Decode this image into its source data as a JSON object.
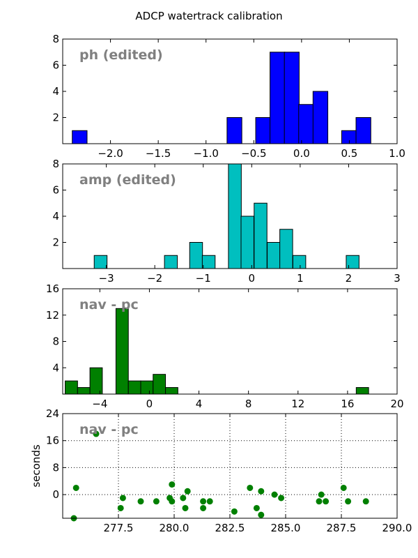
{
  "figure": {
    "title": "ADCP watertrack calibration"
  },
  "chart_data": [
    {
      "type": "bar",
      "label": "ph (edited)",
      "color": "#0000ff",
      "xlim": [
        -2.5,
        1.0
      ],
      "ylim": [
        0,
        8
      ],
      "xticks": [
        -2.0,
        -1.5,
        -1.0,
        -0.5,
        0.0,
        0.5,
        1.0
      ],
      "xtick_labels": [
        "−2.0",
        "−1.5",
        "−1.0",
        "−0.5",
        "0.0",
        "0.5",
        "1.0"
      ],
      "yticks": [
        2,
        4,
        6,
        8
      ],
      "ytick_labels": [
        "2",
        "4",
        "6",
        "8"
      ],
      "bin_width": 0.155,
      "bars": [
        {
          "x": -2.4,
          "value": 1
        },
        {
          "x": -0.78,
          "value": 2
        },
        {
          "x": -0.48,
          "value": 2
        },
        {
          "x": -0.33,
          "value": 7
        },
        {
          "x": -0.18,
          "value": 7
        },
        {
          "x": -0.03,
          "value": 3
        },
        {
          "x": 0.12,
          "value": 4
        },
        {
          "x": 0.42,
          "value": 1
        },
        {
          "x": 0.57,
          "value": 2
        }
      ]
    },
    {
      "type": "bar",
      "label": "amp (edited)",
      "color": "#00bfbf",
      "xlim": [
        -3.9,
        3.0
      ],
      "ylim": [
        0,
        8
      ],
      "xticks": [
        -3,
        -2,
        -1,
        0,
        1,
        2,
        3
      ],
      "xtick_labels": [
        "−3",
        "−2",
        "−1",
        "0",
        "1",
        "2",
        "3"
      ],
      "yticks": [
        2,
        4,
        6,
        8
      ],
      "ytick_labels": [
        "2",
        "4",
        "6",
        "8"
      ],
      "bin_width": 0.265,
      "bars": [
        {
          "x": -3.25,
          "value": 1
        },
        {
          "x": -1.8,
          "value": 1
        },
        {
          "x": -1.28,
          "value": 2
        },
        {
          "x": -1.02,
          "value": 1
        },
        {
          "x": -0.48,
          "value": 8
        },
        {
          "x": -0.22,
          "value": 4
        },
        {
          "x": 0.05,
          "value": 5
        },
        {
          "x": 0.32,
          "value": 2
        },
        {
          "x": 0.58,
          "value": 3
        },
        {
          "x": 0.85,
          "value": 1
        },
        {
          "x": 1.95,
          "value": 1
        }
      ]
    },
    {
      "type": "bar",
      "label": "nav - pc",
      "color": "#008000",
      "xlim": [
        -7.0,
        20.0
      ],
      "ylim": [
        0,
        16
      ],
      "xticks": [
        -4,
        0,
        4,
        8,
        12,
        16,
        20
      ],
      "xtick_labels": [
        "−4",
        "0",
        "4",
        "8",
        "12",
        "16",
        "20"
      ],
      "yticks": [
        4,
        8,
        12,
        16
      ],
      "ytick_labels": [
        "4",
        "8",
        "12",
        "16"
      ],
      "bin_width": 1.0,
      "bars": [
        {
          "x": -6.8,
          "value": 2
        },
        {
          "x": -5.8,
          "value": 1
        },
        {
          "x": -4.8,
          "value": 4
        },
        {
          "x": -2.7,
          "value": 13
        },
        {
          "x": -1.7,
          "value": 2
        },
        {
          "x": -0.7,
          "value": 2
        },
        {
          "x": 0.3,
          "value": 3
        },
        {
          "x": 1.3,
          "value": 1
        },
        {
          "x": 16.7,
          "value": 1
        }
      ]
    },
    {
      "type": "scatter",
      "label": "nav - pc",
      "ylabel": "seconds",
      "color": "#008000",
      "grid": true,
      "xlim": [
        275.0,
        290.0
      ],
      "ylim": [
        -7,
        24
      ],
      "xticks": [
        277.5,
        280.0,
        282.5,
        285.0,
        287.5,
        290.0
      ],
      "xtick_labels": [
        "277.5",
        "280.0",
        "282.5",
        "285.0",
        "287.5",
        "290.0"
      ],
      "yticks": [
        0,
        8,
        16,
        24
      ],
      "ytick_labels": [
        "0",
        "8",
        "16",
        "24"
      ],
      "points": [
        {
          "x": 275.6,
          "y": 2
        },
        {
          "x": 275.5,
          "y": -7
        },
        {
          "x": 276.5,
          "y": 18
        },
        {
          "x": 277.7,
          "y": -1
        },
        {
          "x": 277.6,
          "y": -4
        },
        {
          "x": 278.5,
          "y": -2
        },
        {
          "x": 279.2,
          "y": -2
        },
        {
          "x": 279.8,
          "y": -1
        },
        {
          "x": 279.9,
          "y": -2
        },
        {
          "x": 279.9,
          "y": 3
        },
        {
          "x": 280.4,
          "y": -1
        },
        {
          "x": 280.6,
          "y": 1
        },
        {
          "x": 280.5,
          "y": -4
        },
        {
          "x": 281.3,
          "y": -4
        },
        {
          "x": 281.3,
          "y": -2
        },
        {
          "x": 281.6,
          "y": -2
        },
        {
          "x": 282.7,
          "y": -5
        },
        {
          "x": 283.4,
          "y": 2
        },
        {
          "x": 283.7,
          "y": -4
        },
        {
          "x": 283.9,
          "y": 1
        },
        {
          "x": 283.9,
          "y": -6
        },
        {
          "x": 284.5,
          "y": 0
        },
        {
          "x": 284.8,
          "y": -1
        },
        {
          "x": 286.5,
          "y": -2
        },
        {
          "x": 286.6,
          "y": 0
        },
        {
          "x": 286.8,
          "y": -2
        },
        {
          "x": 287.6,
          "y": 2
        },
        {
          "x": 287.8,
          "y": -2
        },
        {
          "x": 288.6,
          "y": -2
        }
      ]
    }
  ]
}
